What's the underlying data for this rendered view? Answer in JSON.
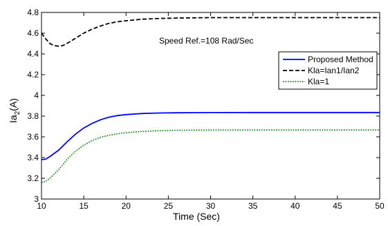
{
  "chart_data": {
    "type": "line",
    "title": "",
    "xlabel": "Time (Sec)",
    "ylabel_main": "Ia",
    "ylabel_sub": "2",
    "ylabel_unit": "(A)",
    "xlim": [
      10,
      50
    ],
    "ylim": [
      3,
      4.8
    ],
    "x_ticks": [
      10,
      15,
      20,
      25,
      30,
      35,
      40,
      45,
      50
    ],
    "y_ticks": [
      3,
      3.2,
      3.4,
      3.6,
      3.8,
      4,
      4.2,
      4.4,
      4.6,
      4.8
    ],
    "x_tick_labels": [
      "10",
      "15",
      "20",
      "25",
      "30",
      "35",
      "40",
      "45",
      "50"
    ],
    "y_tick_labels": [
      "3",
      "3.2",
      "3.4",
      "3.6",
      "3.8",
      "4",
      "4.2",
      "4.4",
      "4.6",
      "4.8"
    ],
    "grid": false,
    "legend_position": "upper-right",
    "annotation": "Speed Ref.=108 Rad/Sec",
    "series": [
      {
        "name": "Proposed Method",
        "color": "#0000ff",
        "dash": "solid",
        "x": [
          10,
          10.5,
          11,
          12,
          13,
          14,
          15,
          16,
          17,
          18,
          19,
          20,
          22,
          24,
          26,
          28,
          30,
          35,
          40,
          45,
          50
        ],
        "y": [
          3.38,
          3.385,
          3.41,
          3.47,
          3.55,
          3.625,
          3.685,
          3.73,
          3.765,
          3.79,
          3.805,
          3.815,
          3.825,
          3.83,
          3.832,
          3.833,
          3.834,
          3.835,
          3.835,
          3.835,
          3.835
        ]
      },
      {
        "name": "Kla=Ian1/Ian2",
        "color": "#000000",
        "dash": "dashed",
        "x": [
          10,
          10.5,
          11,
          11.5,
          12,
          12.5,
          13,
          14,
          15,
          16,
          17,
          18,
          19,
          20,
          22,
          24,
          26,
          28,
          30,
          35,
          40,
          45,
          50
        ],
        "y": [
          4.6,
          4.545,
          4.5,
          4.48,
          4.475,
          4.48,
          4.5,
          4.55,
          4.6,
          4.64,
          4.67,
          4.695,
          4.71,
          4.72,
          4.735,
          4.742,
          4.746,
          4.748,
          4.75,
          4.75,
          4.75,
          4.75,
          4.75
        ]
      },
      {
        "name": "Kla=1",
        "color": "#008000",
        "dash": "dotted",
        "x": [
          10,
          10.5,
          11,
          12,
          13,
          14,
          15,
          16,
          17,
          18,
          19,
          20,
          22,
          24,
          26,
          28,
          30,
          35,
          40,
          45,
          50
        ],
        "y": [
          3.16,
          3.17,
          3.2,
          3.28,
          3.38,
          3.46,
          3.52,
          3.565,
          3.595,
          3.615,
          3.63,
          3.64,
          3.653,
          3.66,
          3.663,
          3.665,
          3.665,
          3.666,
          3.666,
          3.666,
          3.666
        ]
      }
    ]
  }
}
